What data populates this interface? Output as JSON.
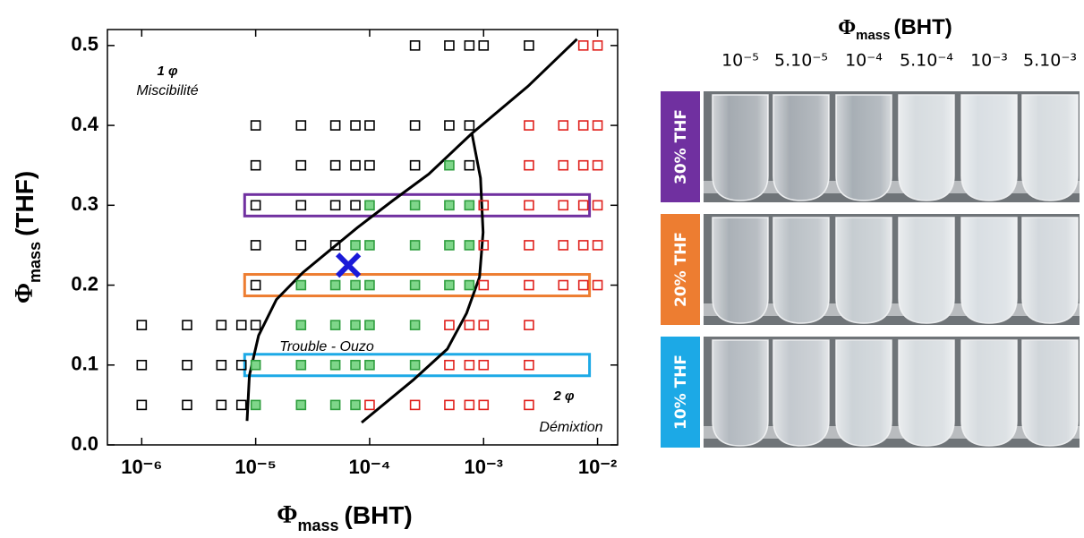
{
  "chart_data": {
    "type": "scatter",
    "x_label": {
      "symbol": "Φ",
      "sub": "mass",
      "text": "(BHT)"
    },
    "y_label": {
      "symbol": "Φ",
      "sub": "mass",
      "text": "(THF)"
    },
    "xscale": "log",
    "xlim": [
      5e-07,
      0.015
    ],
    "ylim": [
      0,
      0.52
    ],
    "xticks": [
      {
        "value": 1e-06,
        "label": "10⁻⁶"
      },
      {
        "value": 1e-05,
        "label": "10⁻⁵"
      },
      {
        "value": 0.0001,
        "label": "10⁻⁴"
      },
      {
        "value": 0.001,
        "label": "10⁻³"
      },
      {
        "value": 0.01,
        "label": "10⁻²"
      }
    ],
    "yticks": [
      {
        "value": 0,
        "label": "0.0"
      },
      0.1,
      0.2,
      0.3,
      0.4,
      0.5
    ],
    "series": [
      {
        "color": "#000000",
        "fill": "none",
        "x": [
          0.00025,
          0.0005,
          0.00075,
          0.001,
          0.0025,
          1e-05,
          2.5e-05,
          5e-05,
          7.5e-05,
          0.0001,
          0.00025,
          0.0005,
          0.00075,
          1e-05,
          2.5e-05,
          5e-05,
          7.5e-05,
          0.0001,
          0.00025,
          0.00075,
          1e-05,
          2.5e-05,
          5e-05,
          7.5e-05,
          1e-05,
          2.5e-05,
          5e-05,
          1e-05,
          1e-06,
          2.5e-06,
          5e-06,
          7.5e-06,
          1e-05,
          1e-06,
          2.5e-06,
          5e-06,
          7.5e-06,
          1e-06,
          2.5e-06,
          5e-06,
          7.5e-06
        ],
        "y": [
          0.5,
          0.5,
          0.5,
          0.5,
          0.5,
          0.4,
          0.4,
          0.4,
          0.4,
          0.4,
          0.4,
          0.4,
          0.4,
          0.35,
          0.35,
          0.35,
          0.35,
          0.35,
          0.35,
          0.35,
          0.3,
          0.3,
          0.3,
          0.3,
          0.25,
          0.25,
          0.25,
          0.2,
          0.15,
          0.15,
          0.15,
          0.15,
          0.15,
          0.1,
          0.1,
          0.1,
          0.1,
          0.05,
          0.05,
          0.05,
          0.05
        ]
      },
      {
        "color": "#2e9e3e",
        "fill": "#7fd68a",
        "x": [
          0.0005,
          0.0001,
          0.00025,
          0.0005,
          0.00075,
          7.5e-05,
          0.0001,
          0.00025,
          0.0005,
          0.00075,
          2.5e-05,
          5e-05,
          7.5e-05,
          0.0001,
          0.00025,
          0.0005,
          0.00075,
          2.5e-05,
          5e-05,
          7.5e-05,
          0.0001,
          0.00025,
          1e-05,
          2.5e-05,
          5e-05,
          7.5e-05,
          0.0001,
          0.00025,
          1e-05,
          2.5e-05,
          5e-05,
          7.5e-05
        ],
        "y": [
          0.35,
          0.3,
          0.3,
          0.3,
          0.3,
          0.25,
          0.25,
          0.25,
          0.25,
          0.25,
          0.2,
          0.2,
          0.2,
          0.2,
          0.2,
          0.2,
          0.2,
          0.15,
          0.15,
          0.15,
          0.15,
          0.15,
          0.1,
          0.1,
          0.1,
          0.1,
          0.1,
          0.1,
          0.05,
          0.05,
          0.05,
          0.05
        ]
      },
      {
        "color": "#e0201c",
        "fill": "none",
        "x": [
          0.0075,
          0.01,
          0.0025,
          0.005,
          0.0075,
          0.01,
          0.0025,
          0.005,
          0.0075,
          0.01,
          0.001,
          0.0025,
          0.005,
          0.0075,
          0.01,
          0.001,
          0.0025,
          0.005,
          0.0075,
          0.01,
          0.001,
          0.0025,
          0.005,
          0.0075,
          0.01,
          0.0005,
          0.00075,
          0.001,
          0.0025,
          0.0005,
          0.00075,
          0.001,
          0.0025,
          0.0001,
          0.00025,
          0.0005,
          0.00075,
          0.001,
          0.0025
        ],
        "y": [
          0.5,
          0.5,
          0.4,
          0.4,
          0.4,
          0.4,
          0.35,
          0.35,
          0.35,
          0.35,
          0.3,
          0.3,
          0.3,
          0.3,
          0.3,
          0.25,
          0.25,
          0.25,
          0.25,
          0.25,
          0.2,
          0.2,
          0.2,
          0.2,
          0.2,
          0.15,
          0.15,
          0.15,
          0.15,
          0.1,
          0.1,
          0.1,
          0.1,
          0.05,
          0.05,
          0.05,
          0.05,
          0.05,
          0.05
        ]
      }
    ],
    "curves": [
      {
        "color": "#000000",
        "x": [
          8.4e-06,
          8.8e-06,
          1.06e-05,
          1.52e-05,
          2.6e-05,
          4.5e-05,
          7.8e-05,
          0.00016,
          0.00033,
          0.00079,
          0.00245,
          0.0066
        ],
        "y": [
          0.03,
          0.087,
          0.137,
          0.182,
          0.216,
          0.244,
          0.272,
          0.306,
          0.339,
          0.39,
          0.449,
          0.508
        ]
      },
      {
        "color": "#000000",
        "x": [
          0.00079,
          0.00094,
          0.00099,
          0.00092,
          0.00071,
          0.00048,
          0.00024,
          8.5e-05
        ],
        "y": [
          0.39,
          0.334,
          0.266,
          0.21,
          0.165,
          0.12,
          0.081,
          0.028
        ]
      }
    ],
    "highlights": [
      {
        "y": 0.3,
        "x": [
          8e-06,
          0.0085
        ],
        "color": "#7030a0"
      },
      {
        "y": 0.2,
        "x": [
          8e-06,
          0.0085
        ],
        "color": "#ed7d31"
      },
      {
        "y": 0.1,
        "x": [
          8e-06,
          0.0085
        ],
        "color": "#1ca9e6"
      }
    ],
    "cross": {
      "x": 6.5e-05,
      "y": 0.225,
      "color": "#1a1ad8"
    },
    "annotations": [
      "1 φ",
      "Miscibilité",
      "Trouble - Ouzo",
      "2 φ",
      "Démixtion"
    ]
  },
  "photo_panel": {
    "title": {
      "symbol": "Φ",
      "sub": "mass",
      "text": "(BHT)"
    },
    "columns": [
      "10⁻⁵",
      "5.10⁻⁵",
      "10⁻⁴",
      "5.10⁻⁴",
      "10⁻³",
      "5.10⁻³"
    ],
    "rows": [
      {
        "label": "30% THF",
        "color": "#7030a0"
      },
      {
        "label": "20% THF",
        "color": "#ed7d31"
      },
      {
        "label": "10% THF",
        "color": "#1ca9e6"
      }
    ]
  }
}
